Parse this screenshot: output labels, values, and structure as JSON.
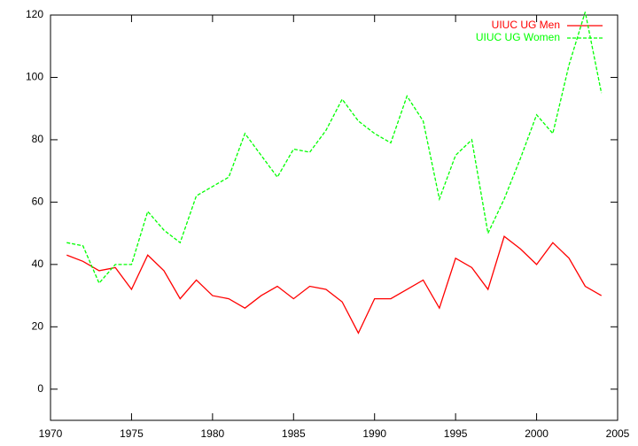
{
  "chart_data": {
    "type": "line",
    "x": [
      1971,
      1972,
      1973,
      1974,
      1975,
      1976,
      1977,
      1978,
      1979,
      1980,
      1981,
      1982,
      1983,
      1984,
      1985,
      1986,
      1987,
      1988,
      1989,
      1990,
      1991,
      1992,
      1993,
      1994,
      1995,
      1996,
      1997,
      1998,
      1999,
      2000,
      2001,
      2002,
      2003,
      2004
    ],
    "series": [
      {
        "name": "UIUC UG Men",
        "color": "#ff0000",
        "line_style": "solid",
        "values": [
          43,
          41,
          38,
          39,
          32,
          43,
          38,
          29,
          35,
          30,
          29,
          26,
          30,
          33,
          29,
          33,
          32,
          28,
          18,
          29,
          29,
          32,
          35,
          26,
          42,
          39,
          32,
          49,
          45,
          40,
          47,
          42,
          33,
          30
        ]
      },
      {
        "name": "UIUC UG Women",
        "color": "#00ff00",
        "line_style": "dashed",
        "values": [
          47,
          46,
          34,
          40,
          40,
          57,
          51,
          47,
          62,
          65,
          68,
          82,
          75,
          68,
          77,
          76,
          83,
          93,
          86,
          82,
          79,
          94,
          86,
          61,
          75,
          80,
          50,
          61,
          74,
          88,
          82,
          104,
          121,
          95
        ]
      }
    ],
    "xlim": [
      1970,
      2005
    ],
    "xticks": [
      1970,
      1975,
      1980,
      1985,
      1990,
      1995,
      2000,
      2005
    ],
    "ylim": [
      -10,
      120
    ],
    "yticks": [
      0,
      20,
      40,
      60,
      80,
      100,
      120
    ],
    "legend": "top-right"
  }
}
